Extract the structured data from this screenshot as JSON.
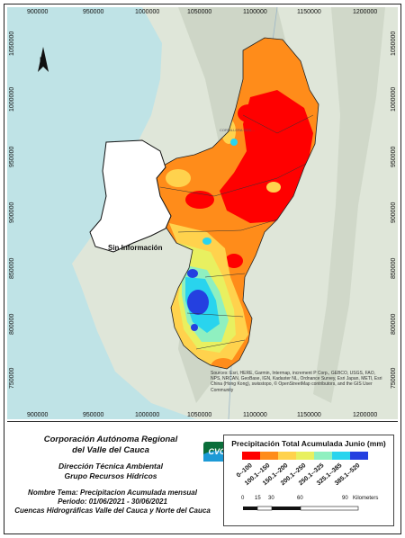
{
  "map": {
    "x_ticks": [
      "900000",
      "950000",
      "1000000",
      "1050000",
      "1100000",
      "1150000",
      "1200000"
    ],
    "y_ticks": [
      "1050000",
      "1000000",
      "950000",
      "900000",
      "850000",
      "800000",
      "750000"
    ],
    "north_label": "N",
    "region_labels": {
      "no_info": "Sin Información",
      "cordillera": "CORDILLERA OCC..."
    },
    "attribution": "Sources: Esri, HERE, Garmin, Intermap, increment P Corp., GEBCO, USGS, FAO, NPS, NRCAN, GeoBase, IGN, Kadaster NL, Ordnance Survey, Esri Japan, METI, Esri China (Hong Kong), swisstopo, © OpenStreetMap contributors, and the GIS User Community",
    "colors": {
      "sea": "#bfe3e6",
      "land": "#dfe6d9",
      "mountain": "#c9d2c2"
    }
  },
  "footer": {
    "org_line1": "Corporación Autónoma Regional",
    "org_line2": "del Valle del Cauca",
    "dept_line1": "Dirección Técnica Ambiental",
    "dept_line2": "Grupo Recursos Hídricos",
    "theme": "Nombre Tema: Precipitacion Acumulada mensual",
    "period": "Periodo: 01/06/2021 - 30/06/2021",
    "basins": "Cuencas Hidrográficas Valle del Cauca y Norte del Cauca",
    "logo_text": "CVC"
  },
  "legend": {
    "title": "Precipitación Total Acumulada Junio (mm)",
    "classes": [
      {
        "label": "0--100",
        "color": "#ff0000"
      },
      {
        "label": "100.1--150",
        "color": "#ff8c1a"
      },
      {
        "label": "150.1--200",
        "color": "#ffd24d"
      },
      {
        "label": "200.1--250",
        "color": "#e8f060"
      },
      {
        "label": "250.1--325",
        "color": "#8ff0c0"
      },
      {
        "label": "325.1--385",
        "color": "#29d4ee"
      },
      {
        "label": "385.1--520",
        "color": "#2440e0"
      }
    ]
  },
  "scale": {
    "ticks": [
      "0",
      "15",
      "30",
      "60",
      "90"
    ],
    "unit": "Kilometers"
  }
}
